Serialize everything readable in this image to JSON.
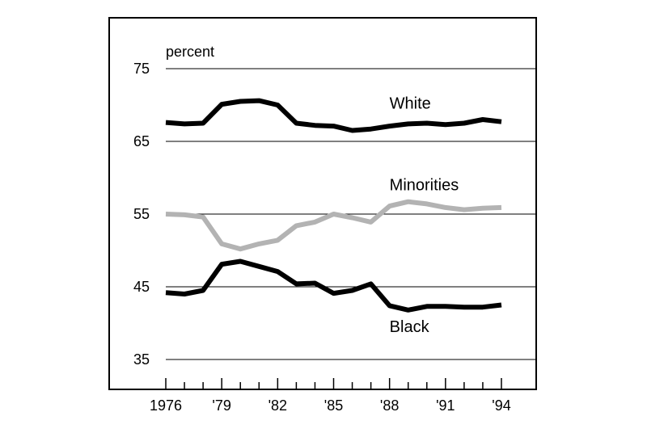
{
  "chart_data": {
    "type": "line",
    "unit_label": "percent",
    "x": [
      1976,
      1977,
      1978,
      1979,
      1980,
      1981,
      1982,
      1983,
      1984,
      1985,
      1986,
      1987,
      1988,
      1989,
      1990,
      1991,
      1992,
      1993,
      1994
    ],
    "x_tick_values": [
      1976,
      1979,
      1982,
      1985,
      1988,
      1991,
      1994
    ],
    "x_tick_labels": [
      "1976",
      "'79",
      "'82",
      "'85",
      "'88",
      "'91",
      "'94"
    ],
    "y_ticks": [
      35,
      45,
      55,
      65,
      75
    ],
    "xlim": [
      1976,
      1994
    ],
    "ylim": [
      31.5,
      80
    ],
    "grid": "horizontal",
    "series": [
      {
        "name": "White",
        "color": "#000000",
        "label_position": [
          1988,
          69.5
        ],
        "values": [
          67.6,
          67.4,
          67.5,
          70.1,
          70.5,
          70.6,
          70.0,
          67.5,
          67.2,
          67.1,
          66.5,
          66.7,
          67.1,
          67.4,
          67.5,
          67.3,
          67.5,
          68.0,
          67.7
        ]
      },
      {
        "name": "Minorities",
        "color": "#b3b3b3",
        "label_position": [
          1988,
          58.3
        ],
        "values": [
          55.0,
          54.9,
          54.6,
          50.9,
          50.2,
          50.9,
          51.4,
          53.4,
          53.9,
          55.0,
          54.5,
          53.9,
          56.1,
          56.7,
          56.4,
          55.9,
          55.6,
          55.8,
          55.9
        ]
      },
      {
        "name": "Black",
        "color": "#000000",
        "label_position": [
          1988,
          38.8
        ],
        "values": [
          44.2,
          44.0,
          44.5,
          48.1,
          48.5,
          47.8,
          47.1,
          45.4,
          45.5,
          44.1,
          44.5,
          45.4,
          42.4,
          41.8,
          42.3,
          42.3,
          42.2,
          42.2,
          42.5
        ]
      }
    ]
  }
}
